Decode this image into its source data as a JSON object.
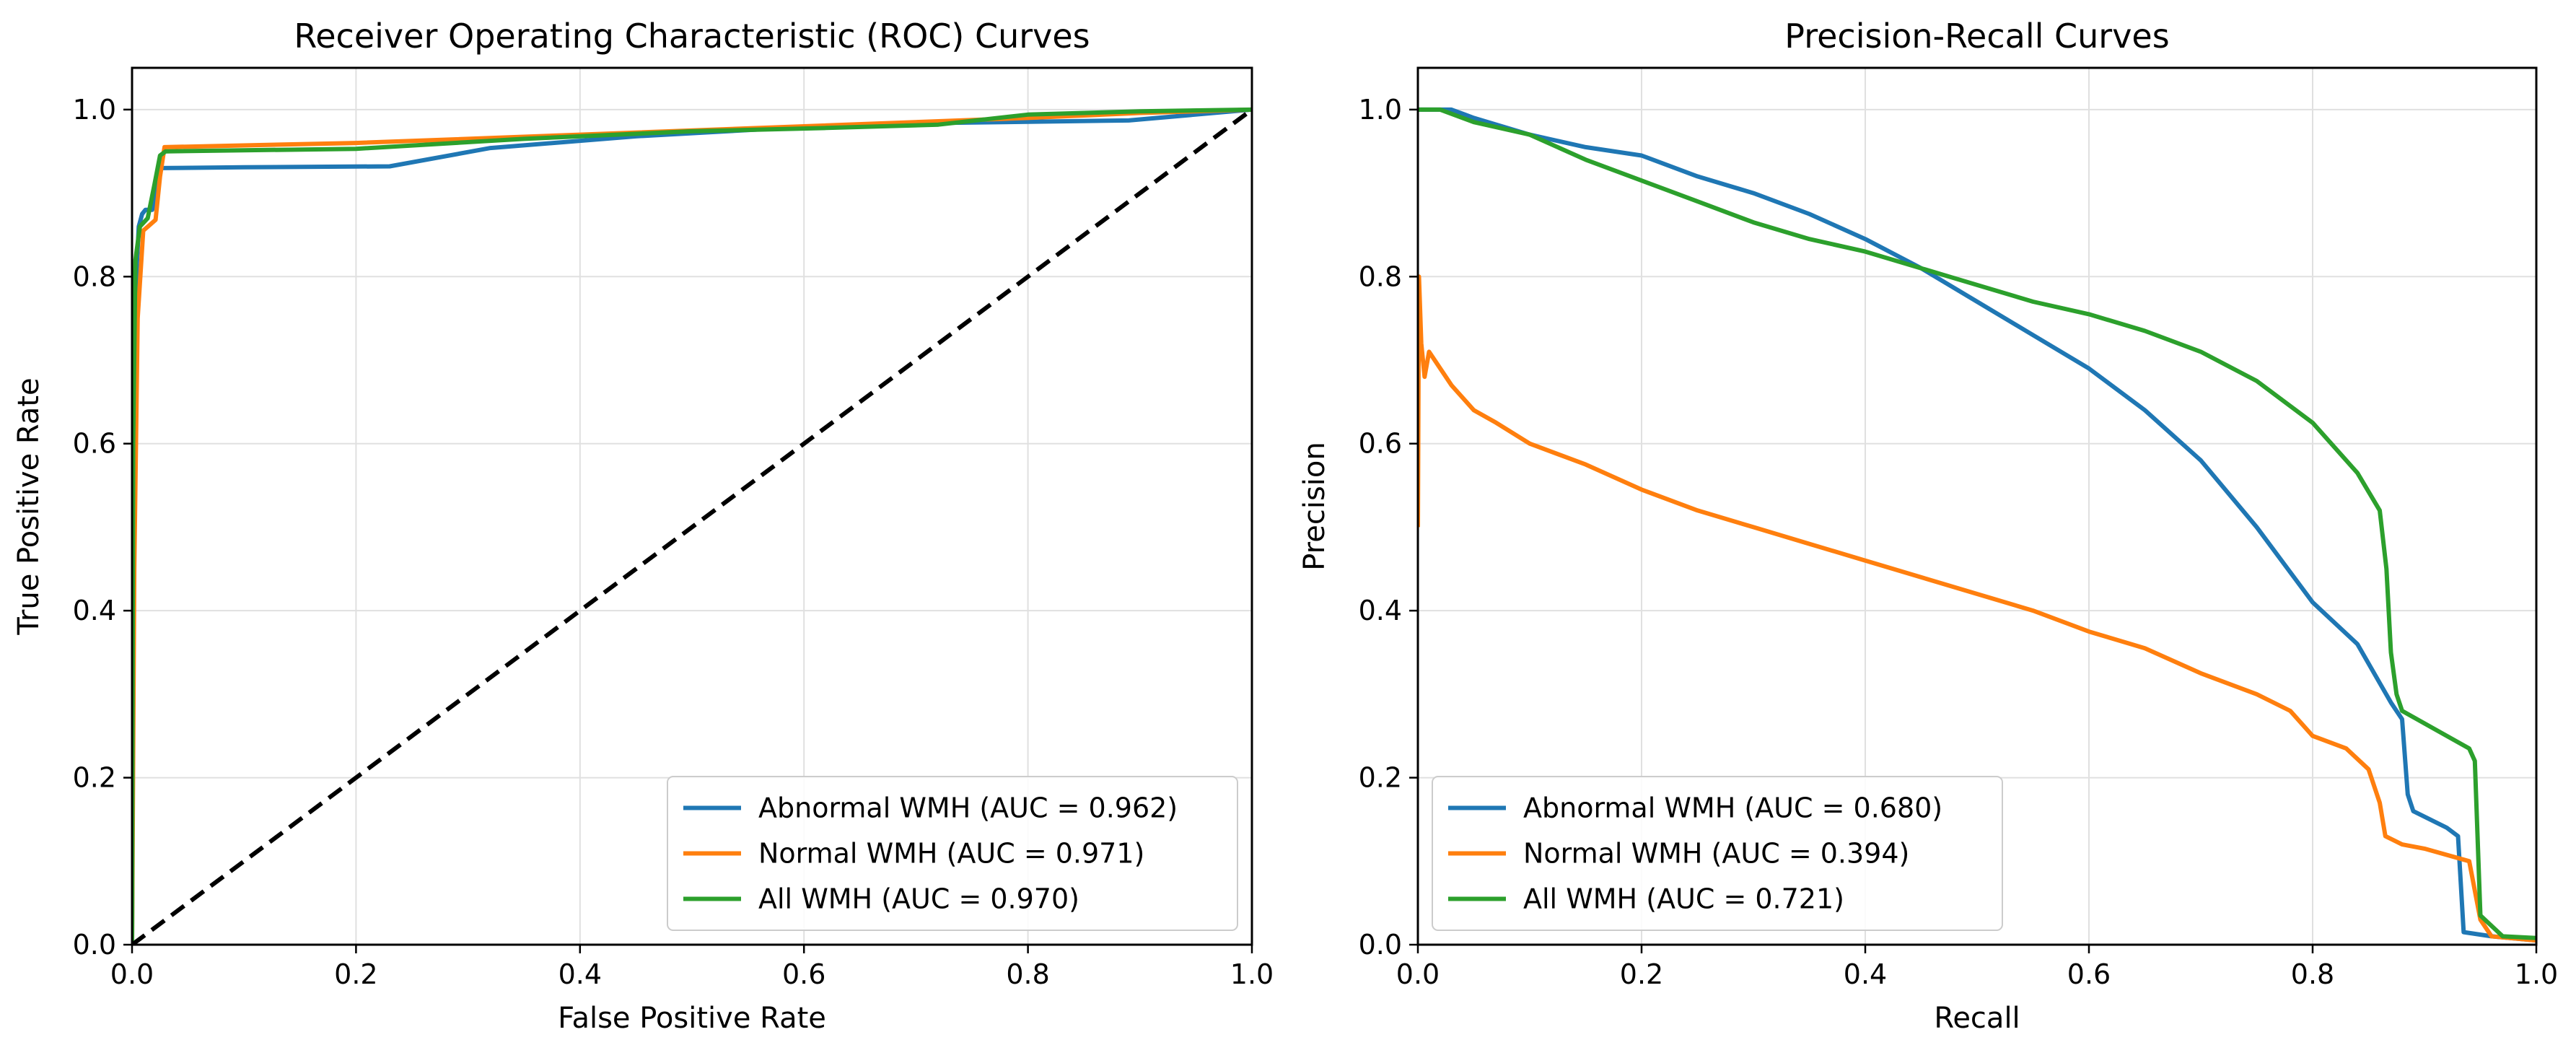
{
  "chart_data": [
    {
      "type": "line",
      "title": "Receiver Operating Characteristic (ROC) Curves",
      "xlabel": "False Positive Rate",
      "ylabel": "True Positive Rate",
      "xlim": [
        0,
        1
      ],
      "ylim": [
        0,
        1.05
      ],
      "xticks": [
        "0.0",
        "0.2",
        "0.4",
        "0.6",
        "0.8",
        "1.0"
      ],
      "yticks": [
        "0.0",
        "0.2",
        "0.4",
        "0.6",
        "0.8",
        "1.0"
      ],
      "grid": true,
      "legend_position": "lower-right",
      "series": [
        {
          "name": "Abnormal WMH (AUC = 0.962)",
          "color": "#1f77b4",
          "points": [
            [
              0,
              0
            ],
            [
              0.001,
              0.55
            ],
            [
              0.003,
              0.78
            ],
            [
              0.006,
              0.86
            ],
            [
              0.009,
              0.875
            ],
            [
              0.012,
              0.88
            ],
            [
              0.018,
              0.88
            ],
            [
              0.022,
              0.9
            ],
            [
              0.026,
              0.93
            ],
            [
              0.1,
              0.931
            ],
            [
              0.23,
              0.932
            ],
            [
              0.32,
              0.954
            ],
            [
              0.45,
              0.968
            ],
            [
              0.57,
              0.977
            ],
            [
              0.72,
              0.984
            ],
            [
              0.89,
              0.987
            ],
            [
              1,
              1
            ]
          ]
        },
        {
          "name": "Normal WMH (AUC = 0.971)",
          "color": "#ff7f0e",
          "points": [
            [
              0,
              0
            ],
            [
              0.002,
              0.45
            ],
            [
              0.005,
              0.75
            ],
            [
              0.01,
              0.855
            ],
            [
              0.016,
              0.862
            ],
            [
              0.021,
              0.868
            ],
            [
              0.025,
              0.92
            ],
            [
              0.029,
              0.955
            ],
            [
              0.2,
              0.96
            ],
            [
              0.4,
              0.97
            ],
            [
              0.6,
              0.98
            ],
            [
              0.8,
              0.99
            ],
            [
              0.9,
              0.996
            ],
            [
              1,
              1
            ]
          ]
        },
        {
          "name": "All WMH (AUC = 0.970)",
          "color": "#2ca02c",
          "points": [
            [
              0,
              0
            ],
            [
              0.001,
              0.6
            ],
            [
              0.003,
              0.82
            ],
            [
              0.007,
              0.86
            ],
            [
              0.014,
              0.87
            ],
            [
              0.02,
              0.91
            ],
            [
              0.025,
              0.945
            ],
            [
              0.03,
              0.95
            ],
            [
              0.2,
              0.953
            ],
            [
              0.35,
              0.965
            ],
            [
              0.5,
              0.974
            ],
            [
              0.62,
              0.978
            ],
            [
              0.72,
              0.982
            ],
            [
              0.8,
              0.994
            ],
            [
              0.9,
              0.998
            ],
            [
              1,
              1
            ]
          ]
        },
        {
          "name": "",
          "color": "#000000",
          "dashed": true,
          "points": [
            [
              0,
              0
            ],
            [
              1,
              1
            ]
          ]
        }
      ]
    },
    {
      "type": "line",
      "title": "Precision-Recall Curves",
      "xlabel": "Recall",
      "ylabel": "Precision",
      "xlim": [
        0,
        1
      ],
      "ylim": [
        0,
        1.05
      ],
      "xticks": [
        "0.0",
        "0.2",
        "0.4",
        "0.6",
        "0.8",
        "1.0"
      ],
      "yticks": [
        "0.0",
        "0.2",
        "0.4",
        "0.6",
        "0.8",
        "1.0"
      ],
      "grid": true,
      "legend_position": "lower-left",
      "series": [
        {
          "name": "Abnormal WMH (AUC = 0.680)",
          "color": "#1f77b4",
          "points": [
            [
              0,
              1
            ],
            [
              0.03,
              1
            ],
            [
              0.05,
              0.99
            ],
            [
              0.1,
              0.97
            ],
            [
              0.15,
              0.955
            ],
            [
              0.2,
              0.945
            ],
            [
              0.25,
              0.92
            ],
            [
              0.3,
              0.9
            ],
            [
              0.35,
              0.875
            ],
            [
              0.4,
              0.845
            ],
            [
              0.45,
              0.81
            ],
            [
              0.5,
              0.77
            ],
            [
              0.55,
              0.73
            ],
            [
              0.6,
              0.69
            ],
            [
              0.65,
              0.64
            ],
            [
              0.7,
              0.58
            ],
            [
              0.75,
              0.5
            ],
            [
              0.8,
              0.41
            ],
            [
              0.84,
              0.36
            ],
            [
              0.87,
              0.29
            ],
            [
              0.88,
              0.27
            ],
            [
              0.885,
              0.18
            ],
            [
              0.89,
              0.16
            ],
            [
              0.92,
              0.14
            ],
            [
              0.93,
              0.13
            ],
            [
              0.935,
              0.015
            ],
            [
              0.96,
              0.01
            ],
            [
              1,
              0.005
            ]
          ]
        },
        {
          "name": "Normal WMH (AUC = 0.394)",
          "color": "#ff7f0e",
          "points": [
            [
              0,
              0.5
            ],
            [
              0.001,
              0.8
            ],
            [
              0.003,
              0.72
            ],
            [
              0.006,
              0.68
            ],
            [
              0.01,
              0.71
            ],
            [
              0.02,
              0.69
            ],
            [
              0.03,
              0.67
            ],
            [
              0.05,
              0.64
            ],
            [
              0.07,
              0.625
            ],
            [
              0.1,
              0.6
            ],
            [
              0.15,
              0.575
            ],
            [
              0.2,
              0.545
            ],
            [
              0.25,
              0.52
            ],
            [
              0.3,
              0.5
            ],
            [
              0.35,
              0.48
            ],
            [
              0.4,
              0.46
            ],
            [
              0.45,
              0.44
            ],
            [
              0.5,
              0.42
            ],
            [
              0.55,
              0.4
            ],
            [
              0.6,
              0.375
            ],
            [
              0.65,
              0.355
            ],
            [
              0.7,
              0.325
            ],
            [
              0.75,
              0.3
            ],
            [
              0.78,
              0.28
            ],
            [
              0.8,
              0.25
            ],
            [
              0.83,
              0.235
            ],
            [
              0.85,
              0.21
            ],
            [
              0.86,
              0.17
            ],
            [
              0.865,
              0.13
            ],
            [
              0.88,
              0.12
            ],
            [
              0.9,
              0.115
            ],
            [
              0.94,
              0.1
            ],
            [
              0.95,
              0.03
            ],
            [
              0.96,
              0.01
            ],
            [
              1,
              0.005
            ]
          ]
        },
        {
          "name": "All WMH (AUC = 0.721)",
          "color": "#2ca02c",
          "points": [
            [
              0,
              1
            ],
            [
              0.02,
              1
            ],
            [
              0.05,
              0.985
            ],
            [
              0.1,
              0.97
            ],
            [
              0.15,
              0.94
            ],
            [
              0.2,
              0.915
            ],
            [
              0.25,
              0.89
            ],
            [
              0.3,
              0.865
            ],
            [
              0.35,
              0.845
            ],
            [
              0.4,
              0.83
            ],
            [
              0.45,
              0.81
            ],
            [
              0.5,
              0.79
            ],
            [
              0.55,
              0.77
            ],
            [
              0.6,
              0.755
            ],
            [
              0.65,
              0.735
            ],
            [
              0.7,
              0.71
            ],
            [
              0.75,
              0.675
            ],
            [
              0.8,
              0.625
            ],
            [
              0.84,
              0.565
            ],
            [
              0.86,
              0.52
            ],
            [
              0.866,
              0.45
            ],
            [
              0.87,
              0.35
            ],
            [
              0.875,
              0.3
            ],
            [
              0.88,
              0.28
            ],
            [
              0.9,
              0.265
            ],
            [
              0.94,
              0.235
            ],
            [
              0.945,
              0.22
            ],
            [
              0.95,
              0.035
            ],
            [
              0.97,
              0.01
            ],
            [
              1,
              0.008
            ]
          ]
        }
      ]
    }
  ]
}
